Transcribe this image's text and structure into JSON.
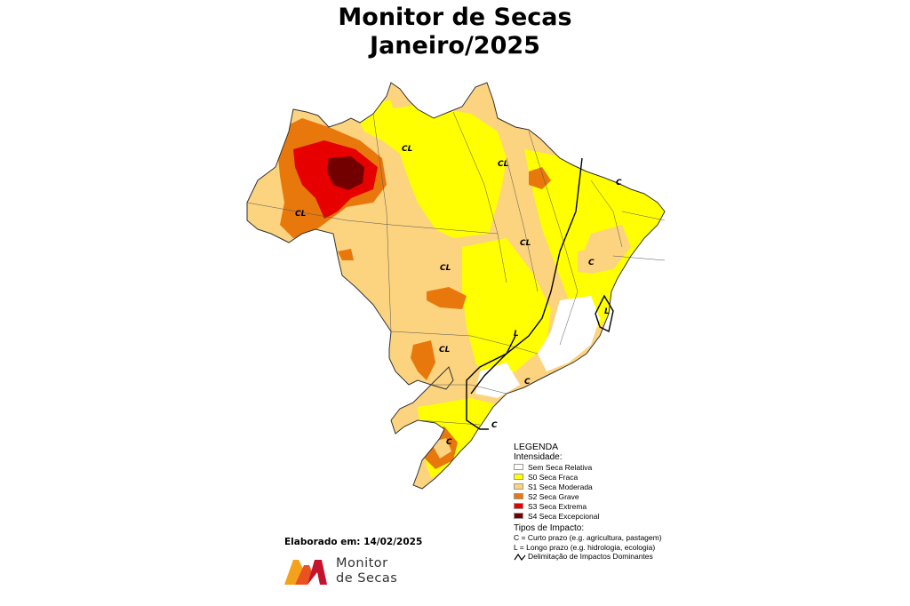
{
  "title_line1": "Monitor de Secas",
  "title_line2": "Janeiro/2025",
  "legend": {
    "heading": "LEGENDA",
    "intensity_heading": "Intensidade:",
    "items": [
      {
        "label": "Sem Seca Relativa",
        "color": "#ffffff"
      },
      {
        "label": "S0 Seca Fraca",
        "color": "#ffff00"
      },
      {
        "label": "S1 Seca Moderada",
        "color": "#fcd37f"
      },
      {
        "label": "S2 Seca Grave",
        "color": "#e8780c"
      },
      {
        "label": "S3 Seca Extrema",
        "color": "#e60000"
      },
      {
        "label": "S4 Seca Excepcional",
        "color": "#730000"
      }
    ],
    "impact_heading": "Tipos de Impacto:",
    "impact_c": "C = Curto prazo (e.g. agricultura, pastagem)",
    "impact_l": "L = Longo prazo (e.g. hidrologia, ecologia)",
    "delimitation": "Delimitação de Impactos Dominantes"
  },
  "map_labels": {
    "cl_north_amazon": "CL",
    "cl_west": "CL",
    "cl_para": "CL",
    "cl_tocantins": "CL",
    "cl_mato_grosso": "CL",
    "cl_ms": "CL",
    "c_northeast": "C",
    "c_bahia": "C",
    "l_east": "L",
    "l_minas": "L",
    "c_southeast": "C",
    "c_south": "C",
    "c_rs": "C"
  },
  "elaborated": "Elaborado em: 14/02/2025",
  "logo": {
    "line1": "Monitor",
    "line2": "de Secas"
  }
}
